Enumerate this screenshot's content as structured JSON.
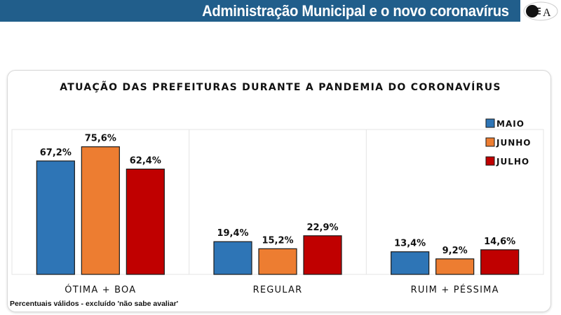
{
  "header": {
    "title": "Administração Municipal e o novo coronavírus",
    "logo_text": "LEA"
  },
  "footnote": "Percentuais válidos - excluído 'não sabe avaliar'",
  "chart_data": {
    "type": "bar",
    "title": "ATUAÇÃO DAS PREFEITURAS DURANTE A PANDEMIA DO CORONAVÍRUS",
    "categories": [
      "ÓTIMA + BOA",
      "REGULAR",
      "RUIM + PÉSSIMA"
    ],
    "series": [
      {
        "name": "MAIO",
        "color": "#2e75b6",
        "values": [
          67.2,
          19.4,
          13.4
        ]
      },
      {
        "name": "JUNHO",
        "color": "#ed7d31",
        "values": [
          75.6,
          15.2,
          9.2
        ]
      },
      {
        "name": "JULHO",
        "color": "#c00000",
        "values": [
          62.4,
          22.9,
          14.6
        ]
      }
    ],
    "ylim": [
      0,
      80
    ],
    "grid": false,
    "legend": "top-right",
    "data_labels": true
  }
}
